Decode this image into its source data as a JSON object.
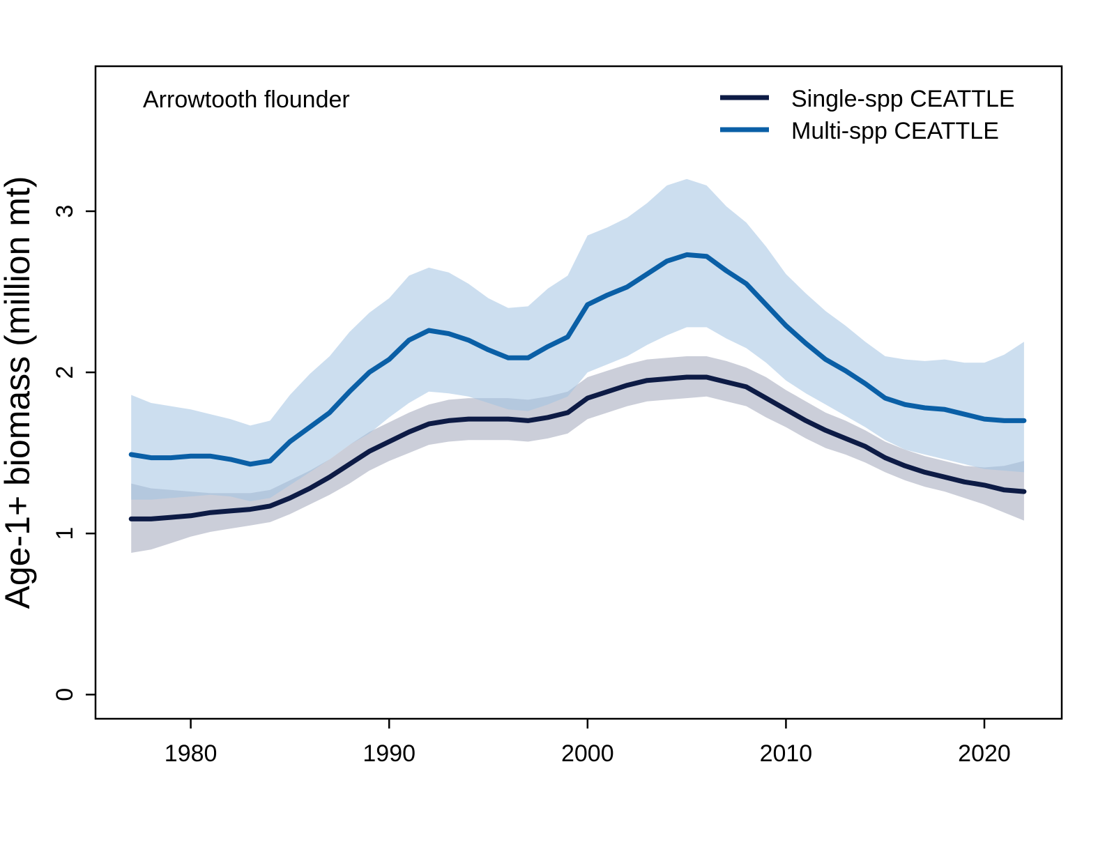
{
  "chart_data": {
    "type": "line",
    "annotation": "Arrowtooth flounder",
    "ylabel": "Age-1+ biomass (million mt)",
    "xlabel": "",
    "xlim": [
      1975.2,
      2023.9
    ],
    "ylim": [
      -0.15,
      3.9
    ],
    "x_ticks": [
      1980,
      1990,
      2000,
      2010,
      2020
    ],
    "y_ticks": [
      0,
      1,
      2,
      3
    ],
    "legend_position": "top-right",
    "grid": false,
    "x": [
      1977,
      1978,
      1979,
      1980,
      1981,
      1982,
      1983,
      1984,
      1985,
      1986,
      1987,
      1988,
      1989,
      1990,
      1991,
      1992,
      1993,
      1994,
      1995,
      1996,
      1997,
      1998,
      1999,
      2000,
      2001,
      2002,
      2003,
      2004,
      2005,
      2006,
      2007,
      2008,
      2009,
      2010,
      2011,
      2012,
      2013,
      2014,
      2015,
      2016,
      2017,
      2018,
      2019,
      2020,
      2021,
      2022
    ],
    "series": [
      {
        "name": "Single-spp CEATTLE",
        "color": "#0d1b45",
        "band_color": "rgba(140,147,170,0.45)",
        "values": [
          1.09,
          1.09,
          1.1,
          1.11,
          1.13,
          1.14,
          1.15,
          1.17,
          1.22,
          1.28,
          1.35,
          1.43,
          1.51,
          1.57,
          1.63,
          1.68,
          1.7,
          1.71,
          1.71,
          1.71,
          1.7,
          1.72,
          1.75,
          1.84,
          1.88,
          1.92,
          1.95,
          1.96,
          1.97,
          1.97,
          1.94,
          1.91,
          1.84,
          1.77,
          1.7,
          1.64,
          1.59,
          1.54,
          1.47,
          1.42,
          1.38,
          1.35,
          1.32,
          1.3,
          1.27,
          1.26
        ],
        "lower": [
          0.88,
          0.9,
          0.94,
          0.98,
          1.01,
          1.03,
          1.05,
          1.07,
          1.12,
          1.18,
          1.24,
          1.31,
          1.39,
          1.45,
          1.5,
          1.55,
          1.57,
          1.58,
          1.58,
          1.58,
          1.57,
          1.59,
          1.62,
          1.71,
          1.75,
          1.79,
          1.82,
          1.83,
          1.84,
          1.85,
          1.82,
          1.79,
          1.72,
          1.66,
          1.59,
          1.53,
          1.49,
          1.44,
          1.38,
          1.33,
          1.29,
          1.26,
          1.22,
          1.18,
          1.13,
          1.08
        ],
        "upper": [
          1.31,
          1.28,
          1.27,
          1.26,
          1.25,
          1.25,
          1.25,
          1.27,
          1.33,
          1.39,
          1.46,
          1.55,
          1.63,
          1.69,
          1.75,
          1.8,
          1.83,
          1.84,
          1.84,
          1.84,
          1.83,
          1.85,
          1.88,
          1.97,
          2.01,
          2.05,
          2.08,
          2.09,
          2.1,
          2.1,
          2.07,
          2.03,
          1.97,
          1.89,
          1.82,
          1.75,
          1.7,
          1.64,
          1.57,
          1.52,
          1.48,
          1.45,
          1.42,
          1.41,
          1.42,
          1.45
        ]
      },
      {
        "name": "Multi-spp CEATTLE",
        "color": "#0a5fa6",
        "band_color": "rgba(163,195,226,0.55)",
        "values": [
          1.49,
          1.47,
          1.47,
          1.48,
          1.48,
          1.46,
          1.43,
          1.45,
          1.57,
          1.66,
          1.75,
          1.88,
          2.0,
          2.08,
          2.2,
          2.26,
          2.24,
          2.2,
          2.14,
          2.09,
          2.09,
          2.16,
          2.22,
          2.42,
          2.48,
          2.53,
          2.61,
          2.69,
          2.73,
          2.72,
          2.63,
          2.55,
          2.42,
          2.29,
          2.18,
          2.08,
          2.01,
          1.93,
          1.84,
          1.8,
          1.78,
          1.77,
          1.74,
          1.71,
          1.7,
          1.7
        ],
        "lower": [
          1.21,
          1.21,
          1.22,
          1.23,
          1.24,
          1.23,
          1.2,
          1.22,
          1.3,
          1.38,
          1.46,
          1.55,
          1.62,
          1.72,
          1.81,
          1.88,
          1.87,
          1.85,
          1.81,
          1.77,
          1.76,
          1.8,
          1.85,
          2.0,
          2.05,
          2.1,
          2.17,
          2.23,
          2.28,
          2.28,
          2.21,
          2.15,
          2.06,
          1.95,
          1.87,
          1.8,
          1.73,
          1.66,
          1.58,
          1.52,
          1.49,
          1.46,
          1.43,
          1.4,
          1.39,
          1.38
        ],
        "upper": [
          1.86,
          1.81,
          1.79,
          1.77,
          1.74,
          1.71,
          1.67,
          1.7,
          1.86,
          1.99,
          2.1,
          2.25,
          2.37,
          2.46,
          2.6,
          2.65,
          2.62,
          2.55,
          2.46,
          2.4,
          2.41,
          2.52,
          2.6,
          2.85,
          2.9,
          2.96,
          3.05,
          3.16,
          3.2,
          3.16,
          3.03,
          2.93,
          2.78,
          2.61,
          2.49,
          2.38,
          2.29,
          2.19,
          2.1,
          2.08,
          2.07,
          2.08,
          2.06,
          2.06,
          2.11,
          2.19
        ]
      }
    ]
  }
}
